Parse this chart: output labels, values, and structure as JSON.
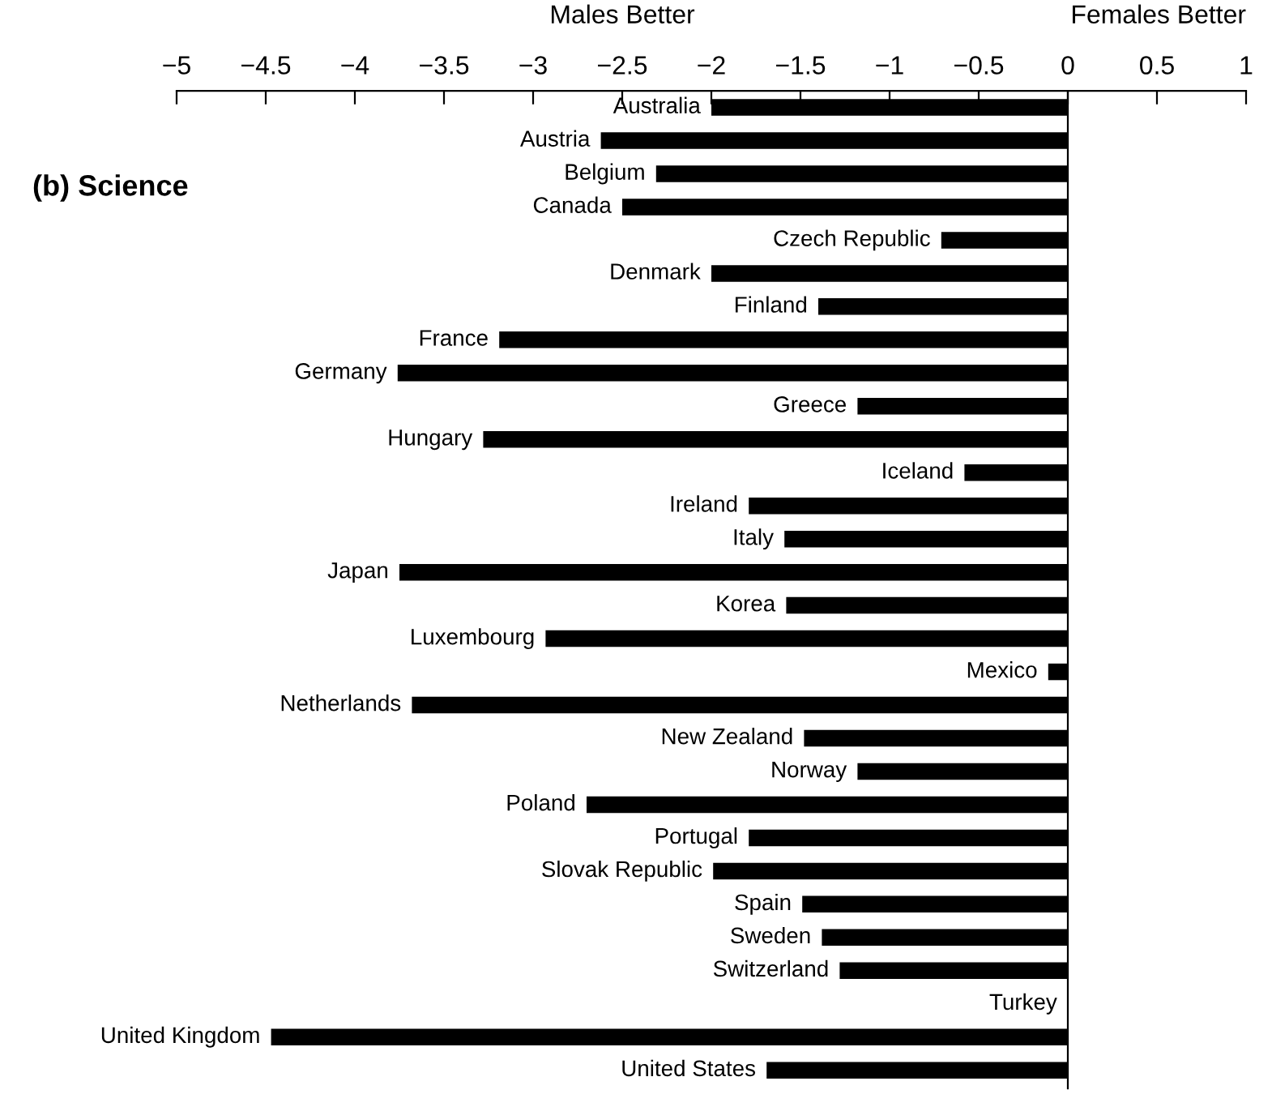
{
  "chart_data": {
    "type": "bar",
    "orientation": "horizontal",
    "title": "(b) Science",
    "annotations": [
      "Males Better",
      "Females Better"
    ],
    "categories": [
      "Australia",
      "Austria",
      "Belgium",
      "Canada",
      "Czech Republic",
      "Denmark",
      "Finland",
      "France",
      "Germany",
      "Greece",
      "Hungary",
      "Iceland",
      "Ireland",
      "Italy",
      "Japan",
      "Korea",
      "Luxembourg",
      "Mexico",
      "Netherlands",
      "New Zealand",
      "Norway",
      "Poland",
      "Portugal",
      "Slovak Republic",
      "Spain",
      "Sweden",
      "Switzerland",
      "Turkey",
      "United Kingdom",
      "United States"
    ],
    "values": [
      -2.0,
      -2.62,
      -2.31,
      -2.5,
      -0.71,
      -2.0,
      -1.4,
      -3.19,
      -3.76,
      -1.18,
      -3.28,
      -0.58,
      -1.79,
      -1.59,
      -3.75,
      -1.58,
      -2.93,
      -0.11,
      -3.68,
      -1.48,
      -1.18,
      -2.7,
      -1.79,
      -1.99,
      -1.49,
      -1.38,
      -1.28,
      0,
      -4.47,
      -1.69
    ],
    "color": "#000000",
    "xlim": [
      -5,
      1
    ],
    "xticks": [
      {
        "value": -5,
        "label": "−5"
      },
      {
        "value": -4.5,
        "label": "−4.5"
      },
      {
        "value": -4,
        "label": "−4"
      },
      {
        "value": -3.5,
        "label": "−3.5"
      },
      {
        "value": -3,
        "label": "−3"
      },
      {
        "value": -2.5,
        "label": "−2.5"
      },
      {
        "value": -2,
        "label": "−2"
      },
      {
        "value": -1.5,
        "label": "−1.5"
      },
      {
        "value": -1,
        "label": "−1"
      },
      {
        "value": -0.5,
        "label": "−0.5"
      },
      0,
      0.5,
      1
    ],
    "legend": false
  }
}
